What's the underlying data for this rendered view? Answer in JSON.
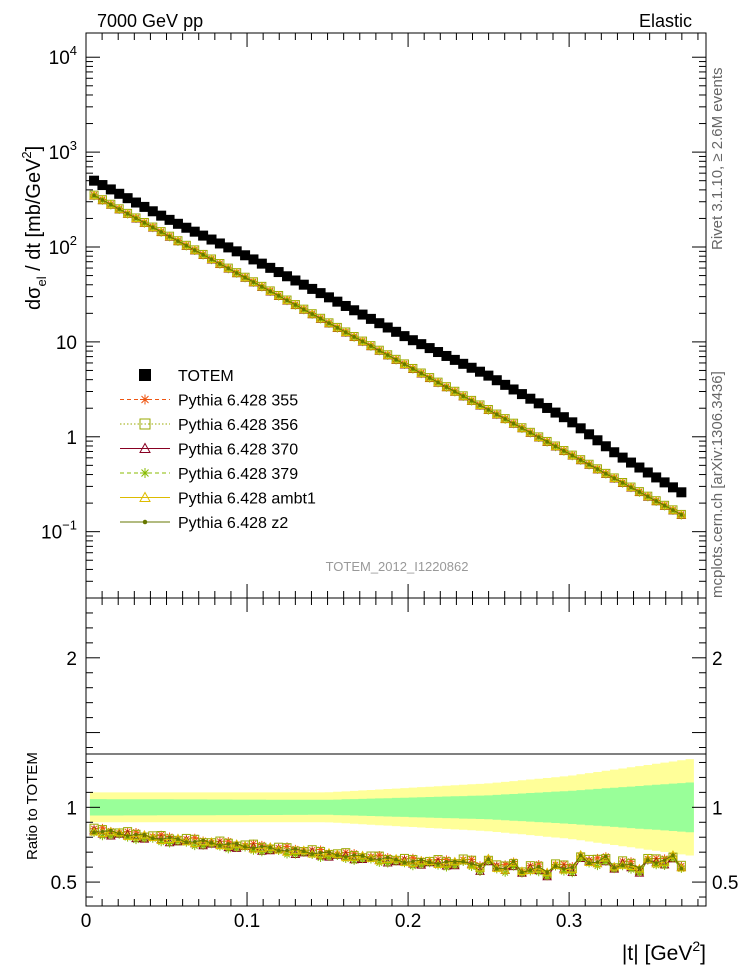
{
  "header": {
    "left": "7000 GeV pp",
    "right": "Elastic"
  },
  "side_labels": {
    "rivet": "Rivet 3.1.10, ≥ 2.6M events",
    "mcplots": "mcplots.cern.ch [arXiv:1306.3436]"
  },
  "watermark": "TOTEM_2012_I1220862",
  "ylabel_main": {
    "base": "dσ",
    "sub": "el",
    "mid": " / dt [mb/GeV",
    "sup": "2",
    "end": "]"
  },
  "ylabel_ratio": "Ratio to TOTEM",
  "xlabel": {
    "base": "|t| [GeV",
    "sup": "2",
    "end": "]"
  },
  "colors": {
    "totem": "#000000",
    "band_inner": "#99ff99",
    "band_outer": "#ffff99",
    "p355": "#ee5511",
    "p356": "#99aa00",
    "p370": "#880022",
    "p379": "#88bb00",
    "ambt1": "#ddbb00",
    "z2": "#667700"
  },
  "chart_data": {
    "type": "scatter",
    "x_axis": {
      "label": "|t| [GeV^2]",
      "range": [
        0,
        0.385
      ],
      "ticks": [
        0,
        0.1,
        0.2,
        0.3
      ],
      "tick_labels": [
        "0",
        "0.1",
        "0.2",
        "0.3"
      ]
    },
    "main_panel": {
      "y_scale": "log",
      "y_range": [
        0.02,
        18000
      ],
      "y_ticks": [
        {
          "value": 0.1,
          "base": "10",
          "exp": "−1"
        },
        {
          "value": 1,
          "base": "1",
          "exp": ""
        },
        {
          "value": 10,
          "base": "10",
          "exp": ""
        },
        {
          "value": 100,
          "base": "10",
          "exp": "2"
        },
        {
          "value": 1000,
          "base": "10",
          "exp": "3"
        },
        {
          "value": 10000,
          "base": "10",
          "exp": "4"
        }
      ],
      "totem": {
        "name": "TOTEM",
        "nodes": [
          [
            0.005,
            500
          ],
          [
            0.05,
            200
          ],
          [
            0.1,
            80
          ],
          [
            0.15,
            30
          ],
          [
            0.2,
            11
          ],
          [
            0.25,
            4.4
          ],
          [
            0.3,
            1.5
          ],
          [
            0.33,
            0.65
          ],
          [
            0.375,
            0.23
          ]
        ],
        "step": 0.00521,
        "n": 71
      },
      "mc_curve": {
        "start": [
          0.005,
          350
        ],
        "end": [
          0.375,
          0.135
        ]
      }
    },
    "ratio_panel": {
      "y_range": [
        0.34,
        2.4
      ],
      "y_ticks": [
        0.5,
        1,
        2
      ],
      "y_tick_labels": [
        "0.5",
        "1",
        "2"
      ],
      "band_inner": [
        [
          0.005,
          0.055
        ],
        [
          0.15,
          0.05
        ],
        [
          0.25,
          0.08
        ],
        [
          0.3,
          0.11
        ],
        [
          0.38,
          0.17
        ]
      ],
      "band_outer": [
        [
          0.005,
          0.1
        ],
        [
          0.15,
          0.1
        ],
        [
          0.25,
          0.16
        ],
        [
          0.3,
          0.21
        ],
        [
          0.38,
          0.33
        ]
      ],
      "ratio_nodes": [
        [
          0.005,
          0.845
        ],
        [
          0.05,
          0.79
        ],
        [
          0.1,
          0.74
        ],
        [
          0.15,
          0.69
        ],
        [
          0.2,
          0.64
        ],
        [
          0.25,
          0.62
        ],
        [
          0.28,
          0.58
        ],
        [
          0.3,
          0.6
        ],
        [
          0.31,
          0.66
        ],
        [
          0.32,
          0.64
        ],
        [
          0.34,
          0.6
        ],
        [
          0.36,
          0.66
        ],
        [
          0.375,
          0.6
        ]
      ]
    },
    "series": [
      {
        "name": "TOTEM",
        "marker": "square-filled",
        "color": "#000000"
      },
      {
        "name": "Pythia 6.428 355",
        "marker": "star",
        "color": "#ee5511",
        "line": "dashed",
        "offset": 0.02
      },
      {
        "name": "Pythia 6.428 356",
        "marker": "square-open",
        "color": "#99aa00",
        "line": "dotted",
        "offset": 0.01
      },
      {
        "name": "Pythia 6.428 370",
        "marker": "triangle-open",
        "color": "#880022",
        "line": "solid",
        "offset": -0.02
      },
      {
        "name": "Pythia 6.428 379",
        "marker": "star",
        "color": "#88bb00",
        "line": "dashed",
        "offset": -0.035
      },
      {
        "name": "Pythia 6.428 ambt1",
        "marker": "triangle-open",
        "color": "#ddbb00",
        "line": "solid",
        "offset": -0.005
      },
      {
        "name": "Pythia 6.428 z2",
        "marker": "dot",
        "color": "#667700",
        "line": "solid",
        "offset": 0.0
      }
    ]
  }
}
